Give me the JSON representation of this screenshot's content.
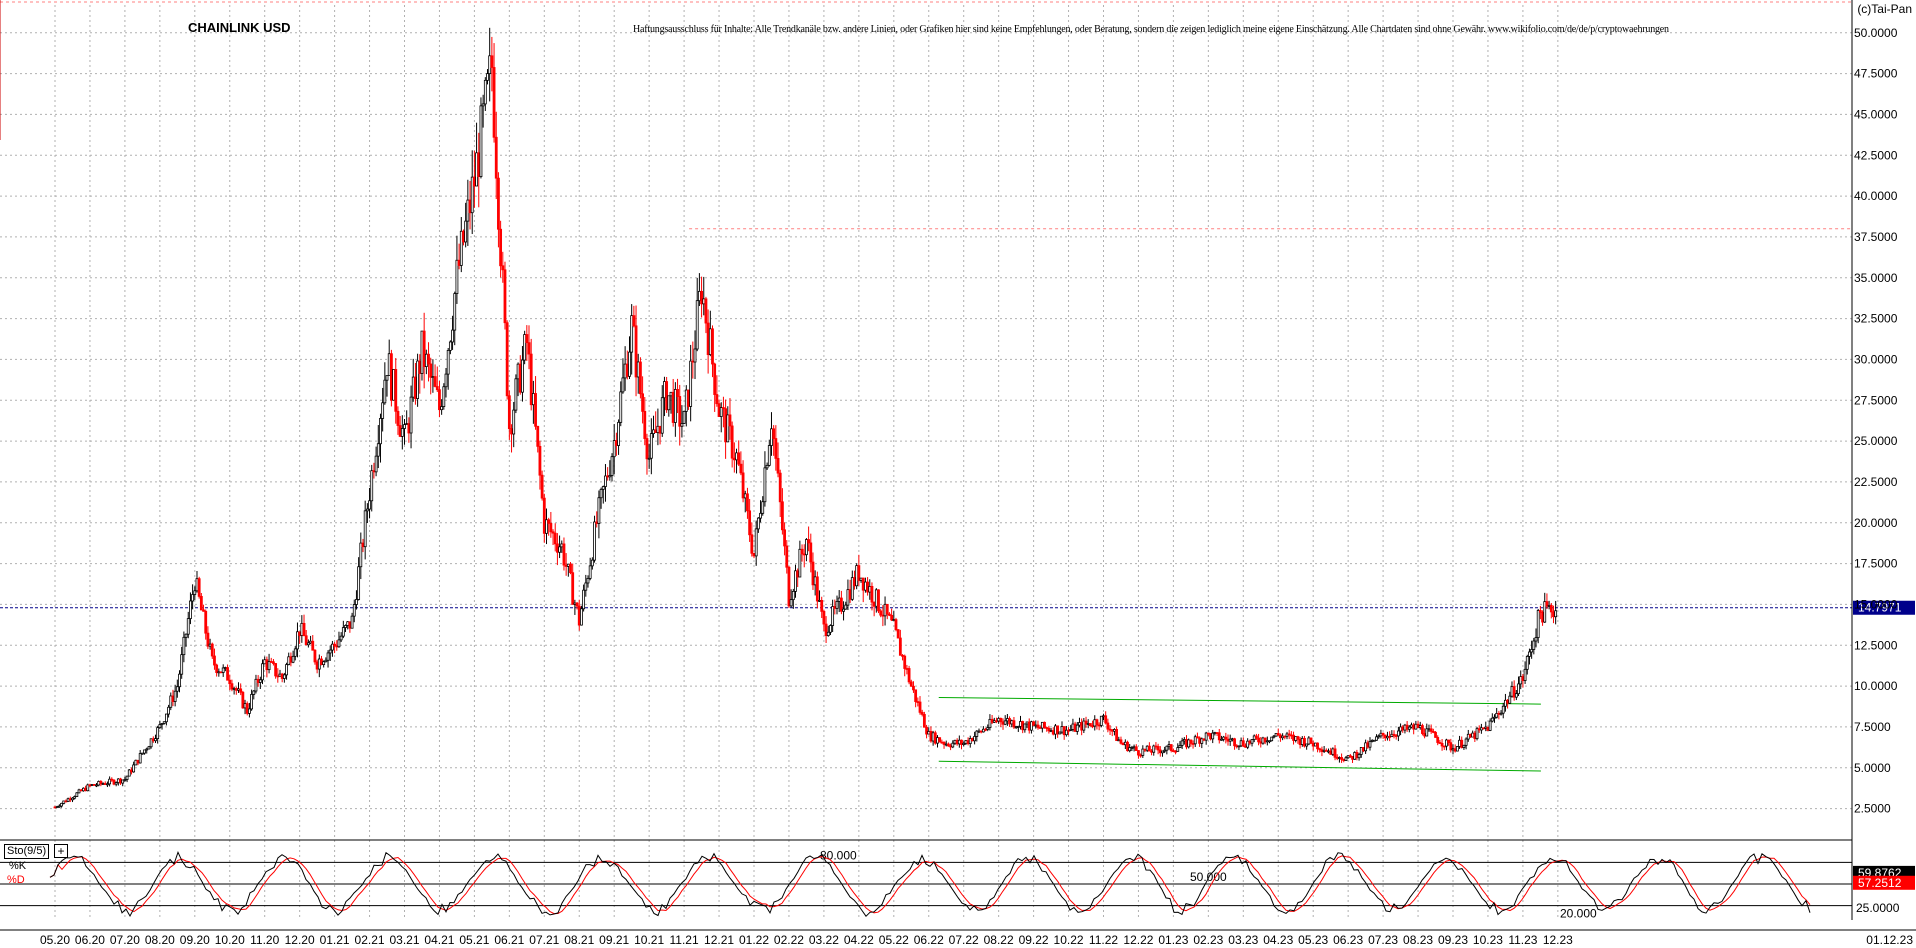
{
  "title": "CHAINLINK USD",
  "disclaimer": "Haftungsausschluss für Inhalte: Alle Trendkanäle bzw. andere Linien, oder Grafiken hier sind keine Empfehlungen, oder Beratung, sondern die zeigen lediglich meine eigene Einschätzung. Alle Chartdaten sind ohne Gewähr. www.wikifolio.com/de/de/p/cryptowaehrungen",
  "copyright": "(c)Tai-Pan",
  "indicator": {
    "name": "Sto(9/5)",
    "k_label": "%K",
    "d_label": "%D",
    "plus": "+"
  },
  "colors": {
    "up": "#000000",
    "down": "#ff0000",
    "grid": "#b0b0b0",
    "price_line": "#00008b",
    "channel": "#00aa00",
    "resistance": "#ff8080",
    "k_line": "#000000",
    "d_line": "#ff0000"
  },
  "chart_data": [
    {
      "type": "candlestick",
      "title": "CHAINLINK USD",
      "x_ticks": [
        "05.20",
        "06.20",
        "07.20",
        "08.20",
        "09.20",
        "10.20",
        "11.20",
        "12.20",
        "01.21",
        "02.21",
        "03.21",
        "04.21",
        "05.21",
        "06.21",
        "07.21",
        "08.21",
        "09.21",
        "10.21",
        "11.21",
        "12.21",
        "01.22",
        "02.22",
        "03.22",
        "04.22",
        "05.22",
        "06.22",
        "07.22",
        "08.22",
        "09.22",
        "10.22",
        "11.22",
        "12.22",
        "01.23",
        "02.23",
        "03.23",
        "04.23",
        "05.23",
        "06.23",
        "07.23",
        "08.23",
        "09.23",
        "10.23",
        "11.23",
        "12.23"
      ],
      "y_ticks": [
        "2.5000",
        "5.0000",
        "7.5000",
        "10.0000",
        "12.5000",
        "15.0000",
        "17.5000",
        "20.0000",
        "22.5000",
        "25.0000",
        "27.5000",
        "30.0000",
        "32.5000",
        "35.0000",
        "37.5000",
        "40.0000",
        "42.5000",
        "45.0000",
        "47.5000",
        "50.0000"
      ],
      "ylim": [
        0.7,
        51.7
      ],
      "last_date_label": "01.12.23",
      "current_price": 14.7971,
      "current_price_label": "14.7971",
      "resistance_level": 38.0,
      "channel": {
        "upper": {
          "from": [
            "06.22",
            9.3
          ],
          "to": [
            "11.23",
            8.9
          ]
        },
        "lower": {
          "from": [
            "06.22",
            5.4
          ],
          "to": [
            "11.23",
            4.8
          ]
        }
      },
      "close_path": [
        [
          "05.20",
          2.6
        ],
        [
          "06.20",
          3.9
        ],
        [
          "07.20",
          4.3
        ],
        [
          "08.20",
          7.5
        ],
        [
          "08.20",
          10.0
        ],
        [
          "09.20",
          16.5
        ],
        [
          "09.20",
          11.5
        ],
        [
          "10.20",
          10.5
        ],
        [
          "10.20",
          8.5
        ],
        [
          "11.20",
          11.5
        ],
        [
          "11.20",
          10.5
        ],
        [
          "12.20",
          13.5
        ],
        [
          "12.20",
          11.5
        ],
        [
          "01.21",
          12.5
        ],
        [
          "01.21",
          14.0
        ],
        [
          "02.21",
          22.0
        ],
        [
          "02.21",
          30.0
        ],
        [
          "03.21",
          25.0
        ],
        [
          "03.21",
          30.5
        ],
        [
          "04.21",
          27.0
        ],
        [
          "04.21",
          35.0
        ],
        [
          "05.21",
          41.0
        ],
        [
          "05.21",
          48.0
        ],
        [
          "06.21",
          26.0
        ],
        [
          "06.21",
          31.0
        ],
        [
          "07.21",
          20.0
        ],
        [
          "07.21",
          18.5
        ],
        [
          "08.21",
          14.0
        ],
        [
          "08.21",
          20.0
        ],
        [
          "09.21",
          25.0
        ],
        [
          "09.21",
          32.0
        ],
        [
          "10.21",
          24.0
        ],
        [
          "10.21",
          28.0
        ],
        [
          "11.21",
          26.0
        ],
        [
          "11.21",
          34.5
        ],
        [
          "12.21",
          27.0
        ],
        [
          "12.21",
          24.0
        ],
        [
          "01.22",
          18.0
        ],
        [
          "01.22",
          26.5
        ],
        [
          "02.22",
          15.5
        ],
        [
          "02.22",
          19.0
        ],
        [
          "03.22",
          13.5
        ],
        [
          "03.22",
          15.0
        ],
        [
          "04.22",
          17.0
        ],
        [
          "05.22",
          13.5
        ],
        [
          "05.22",
          10.0
        ],
        [
          "06.22",
          7.0
        ],
        [
          "06.22",
          6.5
        ],
        [
          "07.22",
          6.5
        ],
        [
          "08.22",
          8.0
        ],
        [
          "09.22",
          7.5
        ],
        [
          "10.22",
          7.3
        ],
        [
          "11.22",
          8.0
        ],
        [
          "11.22",
          6.5
        ],
        [
          "12.22",
          6.0
        ],
        [
          "01.23",
          6.2
        ],
        [
          "02.23",
          7.0
        ],
        [
          "03.23",
          6.5
        ],
        [
          "04.23",
          7.0
        ],
        [
          "05.23",
          6.5
        ],
        [
          "06.23",
          5.5
        ],
        [
          "07.23",
          7.0
        ],
        [
          "08.23",
          7.5
        ],
        [
          "09.23",
          6.2
        ],
        [
          "10.23",
          7.5
        ],
        [
          "11.23",
          10.5
        ],
        [
          "11.23",
          14.5
        ],
        [
          "12.23",
          14.8
        ]
      ]
    },
    {
      "type": "line",
      "name": "Sto(9/5)",
      "levels": [
        {
          "value": 80,
          "label": "80.000"
        },
        {
          "value": 50,
          "label": "50.000"
        },
        {
          "value": 20,
          "label": "20.000"
        }
      ],
      "right_ticks": [
        "25.0000"
      ],
      "series": [
        {
          "name": "%K",
          "last": 59.8762,
          "last_label": "59.8762"
        },
        {
          "name": "%D",
          "last": 57.2512,
          "last_label": "57.2512"
        }
      ],
      "ylim": [
        0,
        100
      ]
    }
  ]
}
